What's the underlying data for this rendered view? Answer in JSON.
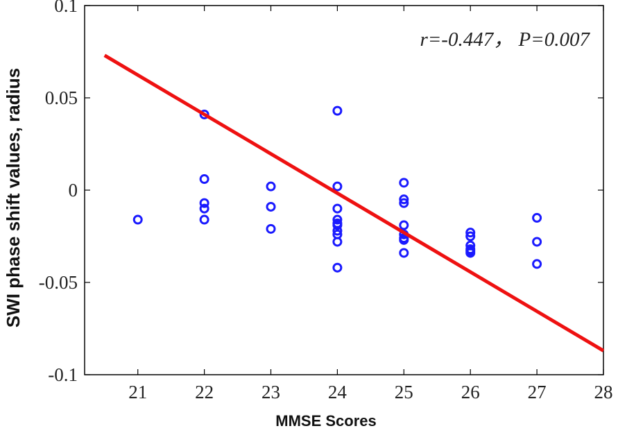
{
  "chart_data": {
    "type": "scatter",
    "title": "",
    "xlabel": "MMSE Scores",
    "ylabel": "SWI phase shift values, radius",
    "xlim": [
      20.2,
      28
    ],
    "ylim": [
      -0.1,
      0.1
    ],
    "xticks": [
      21,
      22,
      23,
      24,
      25,
      26,
      27,
      28
    ],
    "yticks": [
      -0.1,
      -0.05,
      0,
      0.05,
      0.1
    ],
    "ytick_labels": [
      "-0.1",
      "-0.05",
      "0",
      "0.05",
      "0.1"
    ],
    "annotation": "r=-0.447， P=0.007",
    "grid": false,
    "legend": "none",
    "points": {
      "x": [
        21,
        22,
        22,
        22,
        22,
        22,
        23,
        23,
        23,
        24,
        24,
        24,
        24,
        24,
        24,
        24,
        24,
        24,
        24,
        25,
        25,
        25,
        25,
        25,
        25,
        25,
        25,
        26,
        26,
        26,
        26,
        26,
        26,
        27,
        27,
        27
      ],
      "y": [
        -0.016,
        0.041,
        0.006,
        -0.007,
        -0.01,
        -0.016,
        0.002,
        -0.009,
        -0.021,
        0.043,
        0.002,
        -0.01,
        -0.016,
        -0.018,
        -0.019,
        -0.022,
        -0.024,
        -0.028,
        -0.042,
        0.004,
        -0.005,
        -0.007,
        -0.019,
        -0.024,
        -0.026,
        -0.027,
        -0.034,
        -0.023,
        -0.025,
        -0.03,
        -0.032,
        -0.033,
        -0.034,
        -0.015,
        -0.028,
        -0.04
      ]
    },
    "fit_line": {
      "x": [
        20.5,
        28
      ],
      "y": [
        0.073,
        -0.087
      ]
    },
    "colors": {
      "points": "#1a1aff",
      "fit_line": "#ee1111",
      "axes": "#000000"
    }
  }
}
